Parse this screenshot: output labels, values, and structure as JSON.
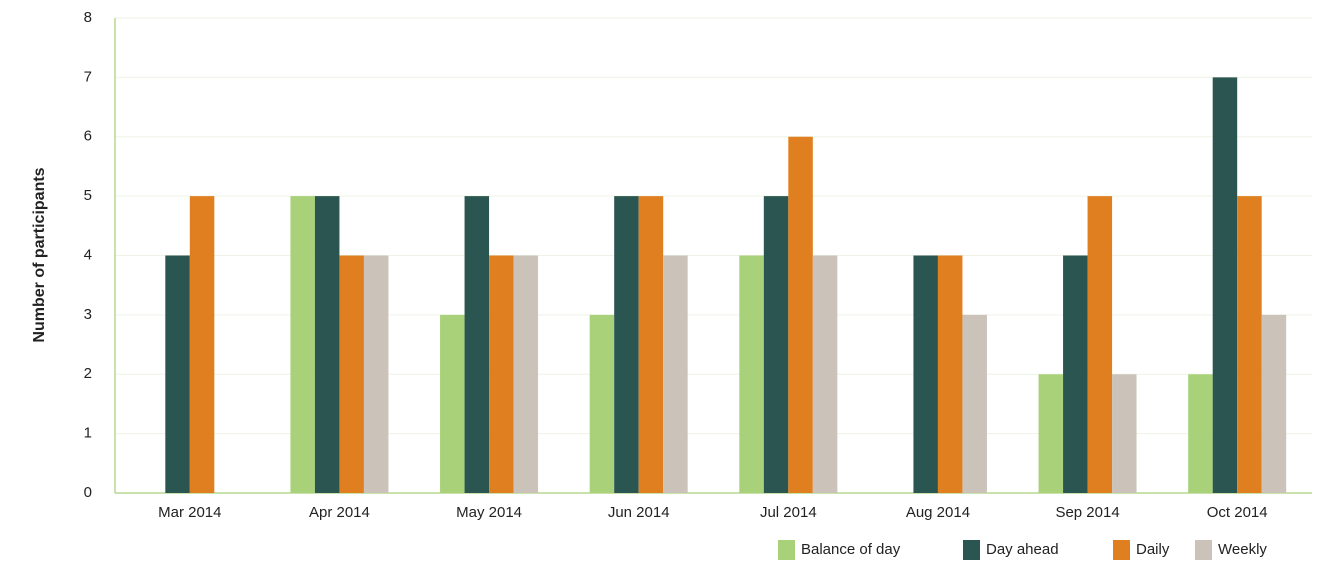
{
  "chart_data": {
    "type": "bar",
    "y_label": "Number of participants",
    "categories": [
      "Mar 2014",
      "Apr 2014",
      "May 2014",
      "Jun 2014",
      "Jul 2014",
      "Aug 2014",
      "Sep 2014",
      "Oct 2014"
    ],
    "series": [
      {
        "name": "Balance of day",
        "color": "#a8d17a",
        "values": [
          0,
          5,
          3,
          3,
          4,
          0,
          2,
          2
        ]
      },
      {
        "name": "Day ahead",
        "color": "#2b5550",
        "values": [
          4,
          5,
          5,
          5,
          5,
          4,
          4,
          7
        ]
      },
      {
        "name": "Daily",
        "color": "#e07f1f",
        "values": [
          5,
          4,
          4,
          5,
          6,
          4,
          5,
          5
        ]
      },
      {
        "name": "Weekly",
        "color": "#cbc3b9",
        "values": [
          0,
          4,
          4,
          4,
          4,
          3,
          2,
          3
        ]
      }
    ],
    "ylim": [
      0,
      8
    ],
    "yticks": [
      0,
      1,
      2,
      3,
      4,
      5,
      6,
      7,
      8
    ],
    "grid": true,
    "legend": "bottom-right"
  }
}
